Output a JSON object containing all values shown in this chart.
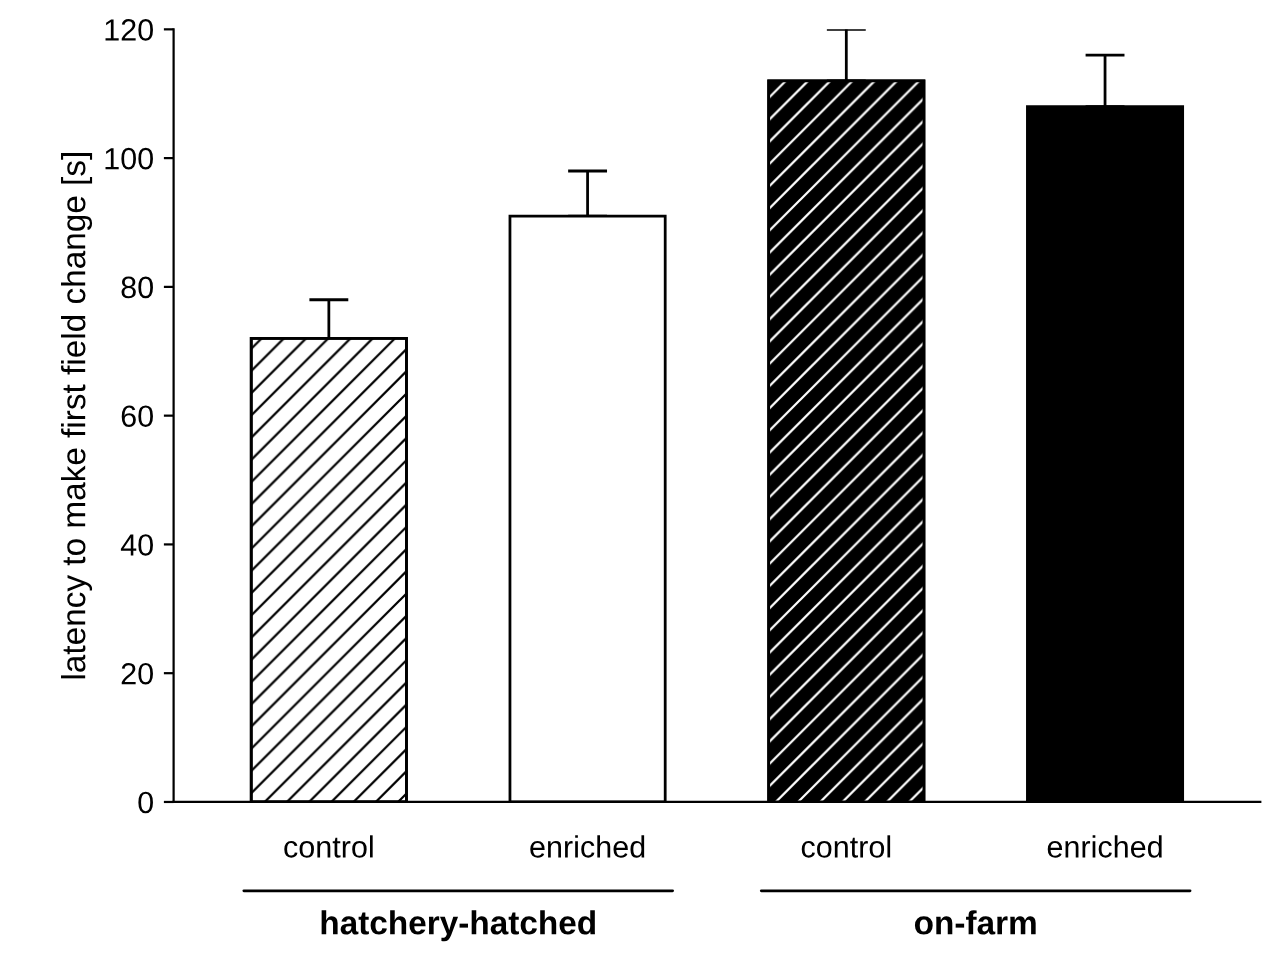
{
  "chart_data": {
    "type": "bar",
    "ylabel": "latency to make first field change [s]",
    "categories": [
      "control",
      "enriched",
      "control",
      "enriched"
    ],
    "values": [
      72,
      91,
      112,
      108
    ],
    "colors": [
      "#ffffff",
      "#ffffff",
      "#000000",
      "#000000"
    ],
    "errors": [
      [
        72,
        78
      ],
      [
        91,
        98
      ],
      [
        112,
        120
      ],
      [
        108,
        116
      ]
    ],
    "ylim": [
      0,
      120
    ],
    "yticks": [
      0,
      20,
      40,
      60,
      80,
      100,
      120
    ],
    "grid": false,
    "legend": false,
    "annotations": [
      "hatchery-hatched",
      "on-farm"
    ]
  }
}
